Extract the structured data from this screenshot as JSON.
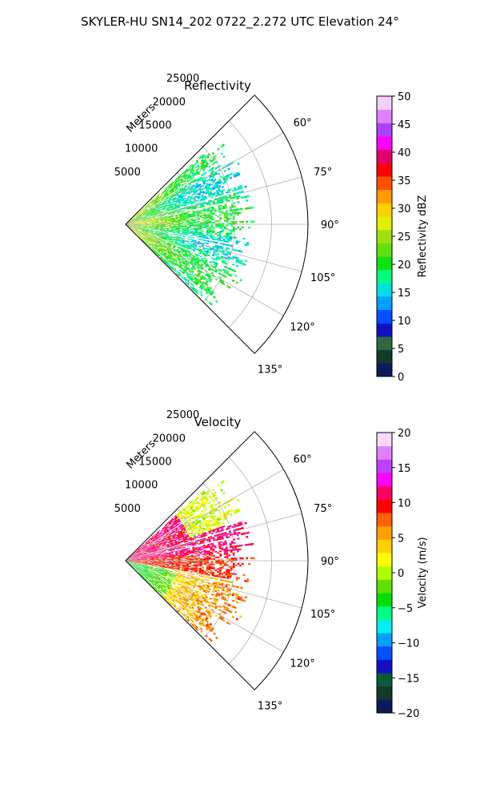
{
  "figure": {
    "title": "SKYLER-HU  SN14_202  0722_2.272 UTC Elevation 24°"
  },
  "chart_data": [
    {
      "type": "polar-sector",
      "title": "Reflectivity",
      "radial_label": "Meters",
      "r_ticks": [
        5000,
        10000,
        15000,
        20000,
        25000
      ],
      "r_tick_labels": [
        "5000",
        "10000",
        "15000",
        "20000",
        "25000"
      ],
      "rlim": [
        0,
        25000
      ],
      "theta_ticks_deg": [
        60,
        75,
        90,
        105,
        120,
        135
      ],
      "theta_tick_labels": [
        "60°",
        "75°",
        "90°",
        "105°",
        "120°",
        "135°"
      ],
      "theta_range_deg": [
        45,
        135
      ],
      "grid": true,
      "data_extent_m": 18000,
      "field": "reflectivity",
      "colorbar": {
        "label": "Reflectivity dBZ",
        "vmin": 0,
        "vmax": 50,
        "ticks": [
          0,
          5,
          10,
          15,
          20,
          25,
          30,
          35,
          40,
          45,
          50
        ],
        "tick_labels": [
          "0",
          "5",
          "10",
          "15",
          "20",
          "25",
          "30",
          "35",
          "40",
          "45",
          "50"
        ],
        "colors": [
          "#0a1a5c",
          "#103a2a",
          "#2e6a3e",
          "#1010c0",
          "#0050ff",
          "#00a0ff",
          "#00e0e0",
          "#00ff80",
          "#10e010",
          "#60e010",
          "#a0e010",
          "#e0f000",
          "#ffd000",
          "#ff9a00",
          "#ff5000",
          "#ff0000",
          "#e0006a",
          "#ff00ff",
          "#b040ff",
          "#e080ff",
          "#f4d0ff"
        ]
      }
    },
    {
      "type": "polar-sector",
      "title": "Velocity",
      "radial_label": "Meters",
      "r_ticks": [
        5000,
        10000,
        15000,
        20000,
        25000
      ],
      "r_tick_labels": [
        "5000",
        "10000",
        "15000",
        "20000",
        "25000"
      ],
      "rlim": [
        0,
        25000
      ],
      "theta_ticks_deg": [
        60,
        75,
        90,
        105,
        120,
        135
      ],
      "theta_tick_labels": [
        "60°",
        "75°",
        "90°",
        "105°",
        "120°",
        "135°"
      ],
      "theta_range_deg": [
        45,
        135
      ],
      "grid": true,
      "data_extent_m": 18000,
      "field": "velocity",
      "colorbar": {
        "label": "Velocity (m/s)",
        "vmin": -20,
        "vmax": 20,
        "ticks": [
          -20,
          -15,
          -10,
          -5,
          0,
          5,
          10,
          15,
          20
        ],
        "tick_labels": [
          "−20",
          "−15",
          "−10",
          "−5",
          "0",
          "5",
          "10",
          "15",
          "20"
        ],
        "colors": [
          "#0a1a5c",
          "#103a2a",
          "#0a5a3a",
          "#1010c0",
          "#0050ff",
          "#00a0ff",
          "#00f0f0",
          "#00ff80",
          "#00e000",
          "#60e000",
          "#b0ff00",
          "#ffff00",
          "#ffd000",
          "#ffa000",
          "#ff6000",
          "#ff0000",
          "#ff0060",
          "#ff00ff",
          "#c040ff",
          "#e080ff",
          "#f8d8ff"
        ]
      }
    }
  ]
}
